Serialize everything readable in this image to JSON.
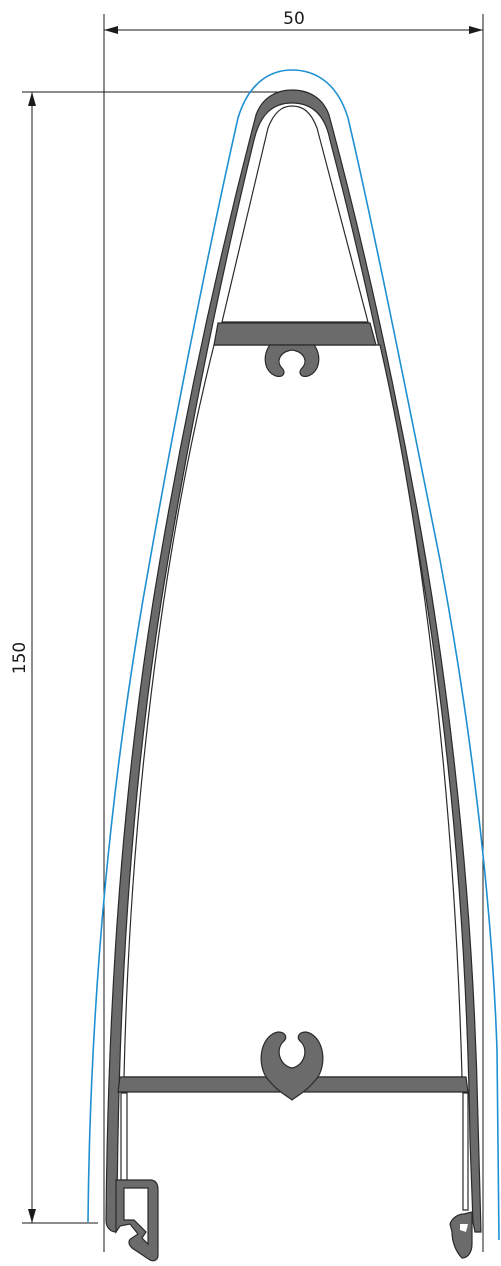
{
  "dimensions": {
    "width_label": "50",
    "height_label": "150"
  },
  "colors": {
    "profile_fill": "#6b6b6b",
    "envelope_stroke": "#1e90d2",
    "dimension_stroke": "#1a1a1a"
  }
}
